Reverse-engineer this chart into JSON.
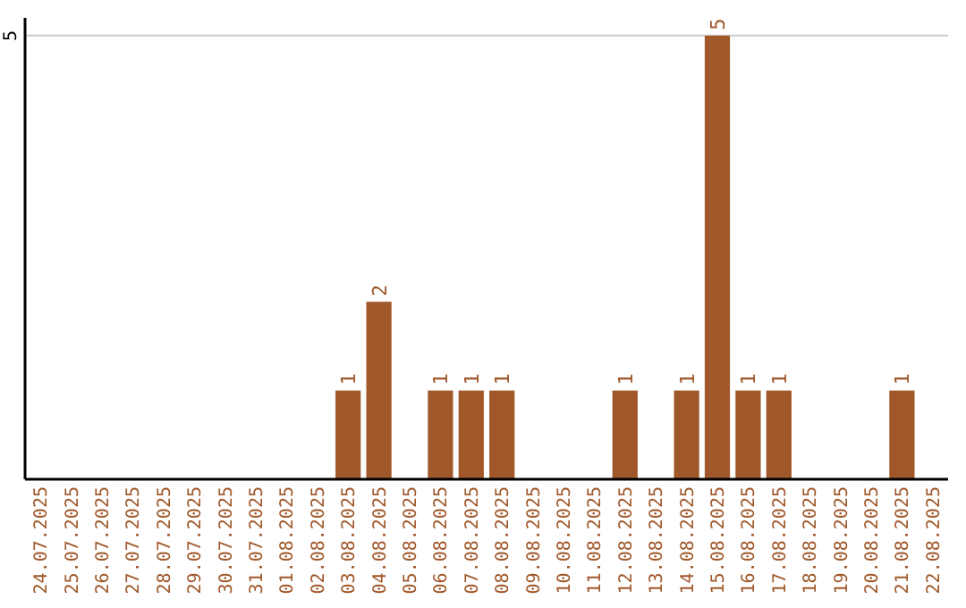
{
  "chart_data": {
    "type": "bar",
    "categories": [
      "24.07.2025",
      "25.07.2025",
      "26.07.2025",
      "27.07.2025",
      "28.07.2025",
      "29.07.2025",
      "30.07.2025",
      "31.07.2025",
      "01.08.2025",
      "02.08.2025",
      "03.08.2025",
      "04.08.2025",
      "05.08.2025",
      "06.08.2025",
      "07.08.2025",
      "08.08.2025",
      "09.08.2025",
      "10.08.2025",
      "11.08.2025",
      "12.08.2025",
      "13.08.2025",
      "14.08.2025",
      "15.08.2025",
      "16.08.2025",
      "17.08.2025",
      "18.08.2025",
      "19.08.2025",
      "20.08.2025",
      "21.08.2025",
      "22.08.2025"
    ],
    "values": [
      0,
      0,
      0,
      0,
      0,
      0,
      0,
      0,
      0,
      0,
      1,
      2,
      0,
      1,
      1,
      1,
      0,
      0,
      0,
      1,
      0,
      1,
      5,
      1,
      1,
      0,
      0,
      0,
      1,
      0
    ],
    "value_labels": [
      null,
      null,
      null,
      null,
      null,
      null,
      null,
      null,
      null,
      null,
      "1",
      "2",
      null,
      "1",
      "1",
      "1",
      null,
      null,
      null,
      "1",
      null,
      "1",
      "5",
      "1",
      "1",
      null,
      null,
      null,
      "1",
      null
    ],
    "color": "#a0582a",
    "ylim": [
      0,
      5.2
    ],
    "yticks": [
      5
    ],
    "grid": "y"
  }
}
